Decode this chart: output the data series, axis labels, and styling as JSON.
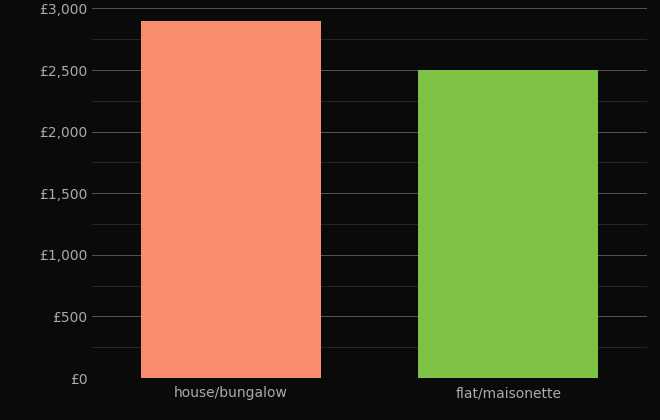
{
  "categories": [
    "house/bungalow",
    "flat/maisonette"
  ],
  "values": [
    2900,
    2500
  ],
  "bar_colors": [
    "#FA8C6E",
    "#7DC242"
  ],
  "background_color": "#0a0a0a",
  "text_color": "#aaaaaa",
  "ylim": [
    0,
    3000
  ],
  "ytick_major_step": 500,
  "ytick_minor_step": 250,
  "bar_width": 0.65,
  "major_grid_color": "#555555",
  "minor_grid_color": "#333333"
}
